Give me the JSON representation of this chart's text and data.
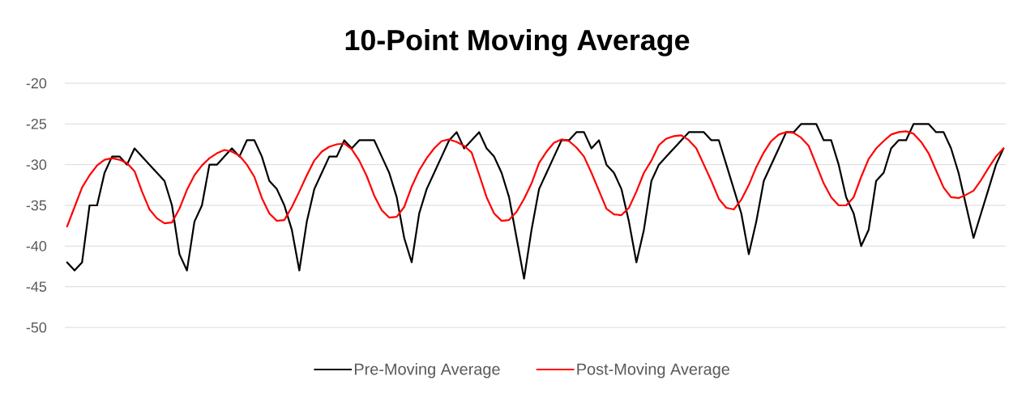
{
  "chart_data": {
    "type": "line",
    "title": "10-Point Moving Average",
    "categories": [
      null,
      null,
      null,
      null,
      null,
      null,
      null,
      null,
      null,
      null,
      null,
      null,
      null,
      null,
      null,
      null,
      null,
      null,
      null,
      null,
      null,
      null,
      null,
      null,
      null,
      null,
      null,
      null,
      null,
      null,
      null,
      null,
      null,
      null,
      null,
      null,
      null,
      null,
      null,
      null,
      null,
      null,
      null,
      null,
      null,
      null,
      null,
      null,
      null,
      null,
      null,
      null,
      null,
      null,
      null,
      null,
      null,
      null,
      null,
      null,
      null,
      null,
      null,
      null,
      null,
      null,
      null,
      null,
      null,
      null,
      null,
      null,
      null,
      null,
      null,
      null,
      null,
      null,
      null,
      null,
      null,
      null,
      null,
      null,
      null,
      null,
      null,
      null,
      null,
      null,
      null,
      null,
      null,
      null,
      null,
      null,
      null,
      null,
      null,
      null,
      null,
      null,
      null,
      null,
      null,
      null,
      null,
      null,
      null,
      null,
      null,
      null,
      null,
      null,
      null,
      null,
      null,
      null,
      null,
      null,
      null,
      null,
      null,
      null,
      null,
      null
    ],
    "series": [
      {
        "name": "Pre-Moving Average",
        "color": "#000000",
        "values": [
          -42,
          -43,
          -42,
          -35,
          -35,
          -31,
          -29,
          -29,
          -30,
          -28,
          -29,
          -30,
          -31,
          -32,
          -35,
          -41,
          -43,
          -37,
          -35,
          -30,
          -30,
          -29,
          -28,
          -29,
          -27,
          -27,
          -29,
          -32,
          -33,
          -35,
          -38,
          -43,
          -37,
          -33,
          -31,
          -29,
          -29,
          -27,
          -28,
          -27,
          -27,
          -27,
          -29,
          -31,
          -34,
          -39,
          -42,
          -36,
          -33,
          -31,
          -29,
          -27,
          -26,
          -28,
          -27,
          -26,
          -28,
          -29,
          -31,
          -34,
          -39,
          -44,
          -38,
          -33,
          -31,
          -29,
          -27,
          -27,
          -26,
          -26,
          -28,
          -27,
          -30,
          -31,
          -33,
          -37,
          -42,
          -38,
          -32,
          -30,
          -29,
          -28,
          -27,
          -26,
          -26,
          -26,
          -27,
          -27,
          -30,
          -33,
          -36,
          -41,
          -37,
          -32,
          -30,
          -28,
          -26,
          -26,
          -25,
          -25,
          -25,
          -27,
          -27,
          -30,
          -34,
          -36,
          -40,
          -38,
          -32,
          -31,
          -28,
          -27,
          -27,
          -25,
          -25,
          -25,
          -26,
          -26,
          -28,
          -31,
          -35,
          -39,
          -36,
          -33,
          -30,
          -28
        ]
      },
      {
        "name": "Post-Moving Average",
        "color": "#ff0000",
        "values": [
          -37.6,
          -35.2,
          -32.8,
          -31.3,
          -30.1,
          -29.4,
          -29.2,
          -29.4,
          -29.8,
          -30.8,
          -33.3,
          -35.5,
          -36.6,
          -37.2,
          -37.1,
          -35.4,
          -33.1,
          -31.3,
          -30.1,
          -29.2,
          -28.6,
          -28.2,
          -28.4,
          -28.9,
          -30,
          -31.5,
          -34.1,
          -36,
          -36.9,
          -36.8,
          -35.2,
          -33.3,
          -31.3,
          -29.5,
          -28.4,
          -27.8,
          -27.5,
          -27.4,
          -28.1,
          -29.5,
          -31.4,
          -33.8,
          -35.6,
          -36.5,
          -36.4,
          -35.2,
          -32.7,
          -30.7,
          -29.2,
          -28,
          -27.1,
          -26.9,
          -27.2,
          -27.7,
          -28.5,
          -31.2,
          -34,
          -36,
          -36.9,
          -36.8,
          -35.8,
          -34.2,
          -32.3,
          -29.8,
          -28.4,
          -27.3,
          -26.9,
          -27.1,
          -27.9,
          -29,
          -31,
          -33.2,
          -35.4,
          -36.1,
          -36.2,
          -35.3,
          -33.3,
          -31,
          -29.5,
          -27.6,
          -26.8,
          -26.5,
          -26.4,
          -27,
          -28,
          -30,
          -32,
          -34.2,
          -35.3,
          -35.5,
          -34.3,
          -32.5,
          -30.3,
          -28.5,
          -27.1,
          -26.3,
          -26,
          -26.1,
          -26.7,
          -27.7,
          -30,
          -32.3,
          -34,
          -35,
          -35,
          -34,
          -31.5,
          -29.3,
          -28,
          -27.1,
          -26.3,
          -26,
          -25.9,
          -26.2,
          -27.2,
          -28.6,
          -30.7,
          -32.8,
          -34,
          -34.1,
          -33.7,
          -33.2,
          -31.9,
          -30.4,
          -29,
          -28
        ]
      }
    ],
    "ylim": [
      -50,
      -20
    ],
    "yticks": [
      -50,
      -45,
      -40,
      -35,
      -30,
      -25,
      -20
    ],
    "grid": "y",
    "legend": "bottom"
  }
}
